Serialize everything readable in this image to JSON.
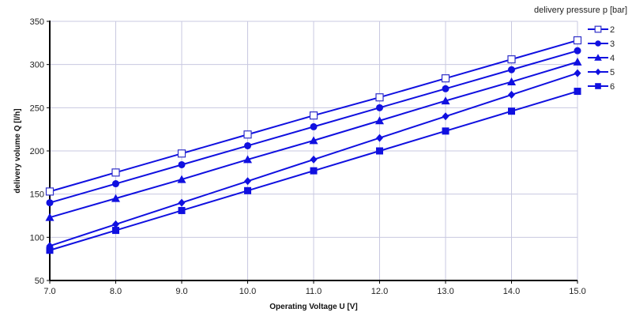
{
  "chart_data": {
    "type": "line",
    "title": "",
    "xlabel": "Operating Voltage U [V]",
    "ylabel": "delivery volume Q [l/h]",
    "x": [
      7.0,
      8.0,
      9.0,
      10.0,
      11.0,
      12.0,
      13.0,
      14.0,
      15.0
    ],
    "x_tick_labels": [
      "7.0",
      "8.0",
      "9.0",
      "10.0",
      "11.0",
      "12.0",
      "13.0",
      "14.0",
      "15.0"
    ],
    "y_tick_labels": [
      "50",
      "100",
      "150",
      "200",
      "250",
      "300",
      "350"
    ],
    "xlim": [
      7.0,
      15.0
    ],
    "ylim": [
      50,
      350
    ],
    "grid": true,
    "legend_title": "delivery pressure p [bar]",
    "legend_position": "top-right outside",
    "series": [
      {
        "name": "2",
        "marker": "square-open",
        "values": [
          153,
          175,
          197,
          219,
          241,
          262,
          284,
          306,
          328
        ]
      },
      {
        "name": "3",
        "marker": "circle",
        "values": [
          140,
          162,
          184,
          206,
          228,
          250,
          272,
          294,
          316
        ]
      },
      {
        "name": "4",
        "marker": "triangle",
        "values": [
          123,
          145,
          167,
          190,
          212,
          235,
          258,
          280,
          303
        ]
      },
      {
        "name": "5",
        "marker": "diamond",
        "values": [
          90,
          115,
          140,
          165,
          190,
          215,
          240,
          265,
          290
        ]
      },
      {
        "name": "6",
        "marker": "square",
        "values": [
          85,
          108,
          131,
          154,
          177,
          200,
          223,
          246,
          269
        ]
      }
    ],
    "colors": {
      "series": "#1010e0",
      "open_marker": "#3030c8",
      "grid": "#c8c8e0",
      "axis": "#000000"
    }
  }
}
